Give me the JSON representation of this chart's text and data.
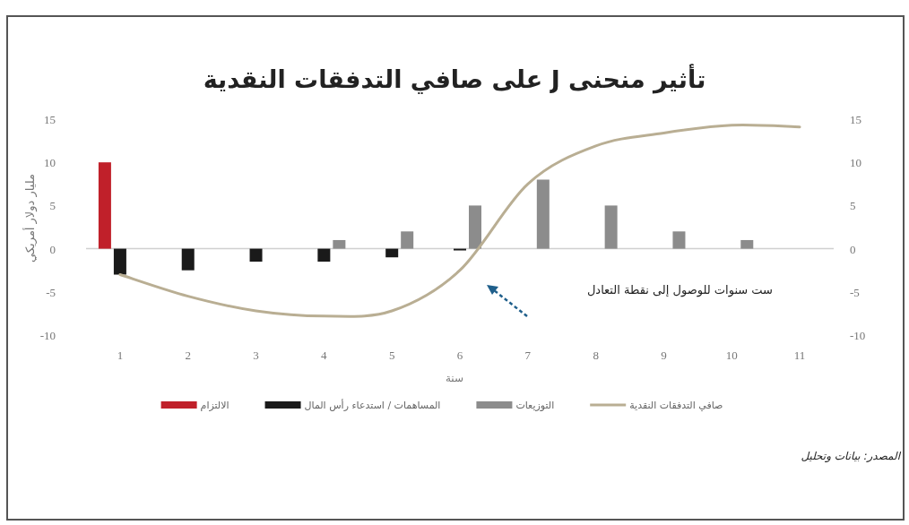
{
  "chart_data": {
    "type": "bar",
    "title": "تأثير منحنى J على صافي التدفقات النقدية",
    "xlabel": "سنة",
    "ylabel": "مليار دولار أمريكي",
    "categories": [
      "1",
      "2",
      "3",
      "4",
      "5",
      "6",
      "7",
      "8",
      "9",
      "10",
      "11"
    ],
    "series": [
      {
        "name": "الالتزام",
        "color": "#c0202a",
        "values": [
          10,
          null,
          null,
          null,
          null,
          null,
          null,
          null,
          null,
          null,
          null
        ]
      },
      {
        "name": "المساهمات / استدعاء رأس المال",
        "color": "#1a1a1a",
        "values": [
          -3,
          -2.5,
          -1.5,
          -1.5,
          -1,
          -0.2,
          null,
          null,
          null,
          null,
          null
        ]
      },
      {
        "name": "التوزيعات",
        "color": "#8c8c8c",
        "values": [
          null,
          null,
          null,
          1,
          2,
          5,
          8,
          5,
          2,
          1,
          null
        ]
      },
      {
        "name": "صافي التدفقات النقدية",
        "type": "line",
        "color": "#b9ae93",
        "values": [
          -3,
          -5.5,
          -7.2,
          -7.8,
          -7.2,
          -2.5,
          7.5,
          11.9,
          13.4,
          14.3,
          14.1
        ]
      }
    ],
    "ylim": [
      -10,
      15
    ],
    "yticks": [
      -10,
      -5,
      0,
      5,
      10,
      15
    ],
    "y2lim": [
      -10,
      15
    ],
    "y2ticks": [
      -10,
      -5,
      0,
      5,
      10,
      15
    ],
    "legend": "bottom",
    "marker": "none",
    "annotations": [
      "ست سنوات للوصول إلى نقطة التعادل",
      "المصدر: بيانات وتحليل"
    ]
  }
}
